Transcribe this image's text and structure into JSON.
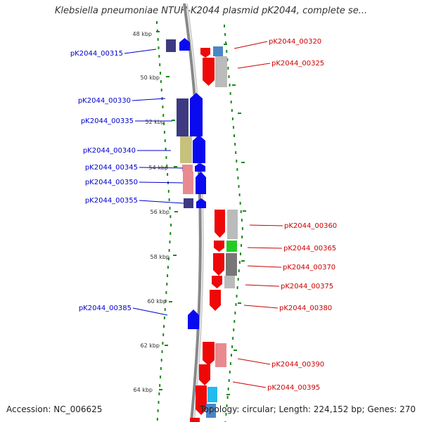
{
  "title": "Klebsiella pneumoniae NTUH-K2044 plasmid pK2044, complete se...",
  "footer": {
    "accession": "Accession: NC_006625",
    "info": "Topology: circular; Length: 224,152 bp; Genes: 270"
  },
  "ticks": [
    "48 kbp",
    "50 kbp",
    "52 kbp",
    "54 kbp",
    "56 kbp",
    "58 kbp",
    "60 kbp",
    "62 kbp",
    "64 kbp"
  ],
  "colors": {
    "forward_cds": "#0a0af0",
    "reverse_cds": "#ee0808",
    "navy": "#3d3a82",
    "khaki": "#c6c17c",
    "pink": "#e88a90",
    "grey": "#bbbbbb",
    "dark_grey": "#777777",
    "green": "#22cc22",
    "steel_blue": "#4a86c8",
    "cyan": "#22bbee",
    "backbone": "#888888",
    "tick_green": "#1a8a1a"
  },
  "left_labels": [
    "pK2044_00315",
    "pK2044_00330",
    "pK2044_00335",
    "pK2044_00340",
    "pK2044_00345",
    "pK2044_00350",
    "pK2044_00355",
    "pK2044_00385"
  ],
  "right_labels": [
    "pK2044_00320",
    "pK2044_00325",
    "pK2044_00360",
    "pK2044_00365",
    "pK2044_00370",
    "pK2044_00375",
    "pK2044_00380",
    "pK2044_00390",
    "pK2044_00395"
  ]
}
